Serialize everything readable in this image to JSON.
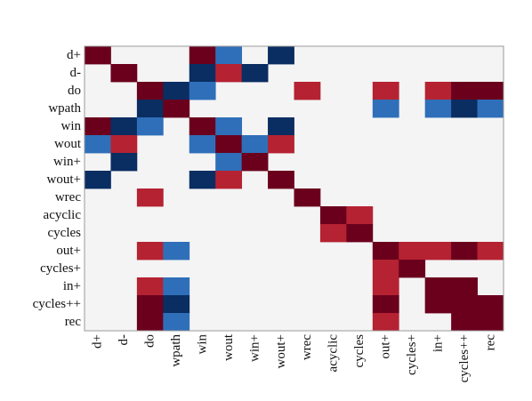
{
  "chart_data": {
    "type": "heatmap",
    "labels": [
      "d+",
      "d-",
      "do",
      "wpath",
      "win",
      "wout",
      "win+",
      "wout+",
      "wrec",
      "acyclic",
      "cycles",
      "out+",
      "cycles+",
      "in+",
      "cycles++",
      "rec"
    ],
    "levels": {
      "0": "#f4f4f4",
      "1": "#6b001d",
      "2": "#b52232",
      "3": "#2f6fb9",
      "4": "#0a2d62"
    },
    "matrix": [
      [
        1,
        0,
        0,
        0,
        1,
        3,
        0,
        4,
        0,
        0,
        0,
        0,
        0,
        0,
        0,
        0
      ],
      [
        0,
        1,
        0,
        0,
        4,
        2,
        4,
        0,
        0,
        0,
        0,
        0,
        0,
        0,
        0,
        0
      ],
      [
        0,
        0,
        1,
        4,
        3,
        0,
        0,
        0,
        2,
        0,
        0,
        2,
        0,
        2,
        1,
        1
      ],
      [
        0,
        0,
        4,
        1,
        0,
        0,
        0,
        0,
        0,
        0,
        0,
        3,
        0,
        3,
        4,
        3
      ],
      [
        1,
        4,
        3,
        0,
        1,
        3,
        0,
        4,
        0,
        0,
        0,
        0,
        0,
        0,
        0,
        0
      ],
      [
        3,
        2,
        0,
        0,
        3,
        1,
        3,
        2,
        0,
        0,
        0,
        0,
        0,
        0,
        0,
        0
      ],
      [
        0,
        4,
        0,
        0,
        0,
        3,
        1,
        0,
        0,
        0,
        0,
        0,
        0,
        0,
        0,
        0
      ],
      [
        4,
        0,
        0,
        0,
        4,
        2,
        0,
        1,
        0,
        0,
        0,
        0,
        0,
        0,
        0,
        0
      ],
      [
        0,
        0,
        2,
        0,
        0,
        0,
        0,
        0,
        1,
        0,
        0,
        0,
        0,
        0,
        0,
        0
      ],
      [
        0,
        0,
        0,
        0,
        0,
        0,
        0,
        0,
        0,
        1,
        2,
        0,
        0,
        0,
        0,
        0
      ],
      [
        0,
        0,
        0,
        0,
        0,
        0,
        0,
        0,
        0,
        2,
        1,
        0,
        0,
        0,
        0,
        0
      ],
      [
        0,
        0,
        2,
        3,
        0,
        0,
        0,
        0,
        0,
        0,
        0,
        1,
        2,
        2,
        1,
        2
      ],
      [
        0,
        0,
        0,
        0,
        0,
        0,
        0,
        0,
        0,
        0,
        0,
        2,
        1,
        0,
        0,
        0
      ],
      [
        0,
        0,
        2,
        3,
        0,
        0,
        0,
        0,
        0,
        0,
        0,
        2,
        0,
        1,
        1,
        0
      ],
      [
        0,
        0,
        1,
        4,
        0,
        0,
        0,
        0,
        0,
        0,
        0,
        1,
        0,
        1,
        1,
        1
      ],
      [
        0,
        0,
        1,
        3,
        0,
        0,
        0,
        0,
        0,
        0,
        0,
        2,
        0,
        0,
        1,
        1
      ]
    ]
  }
}
